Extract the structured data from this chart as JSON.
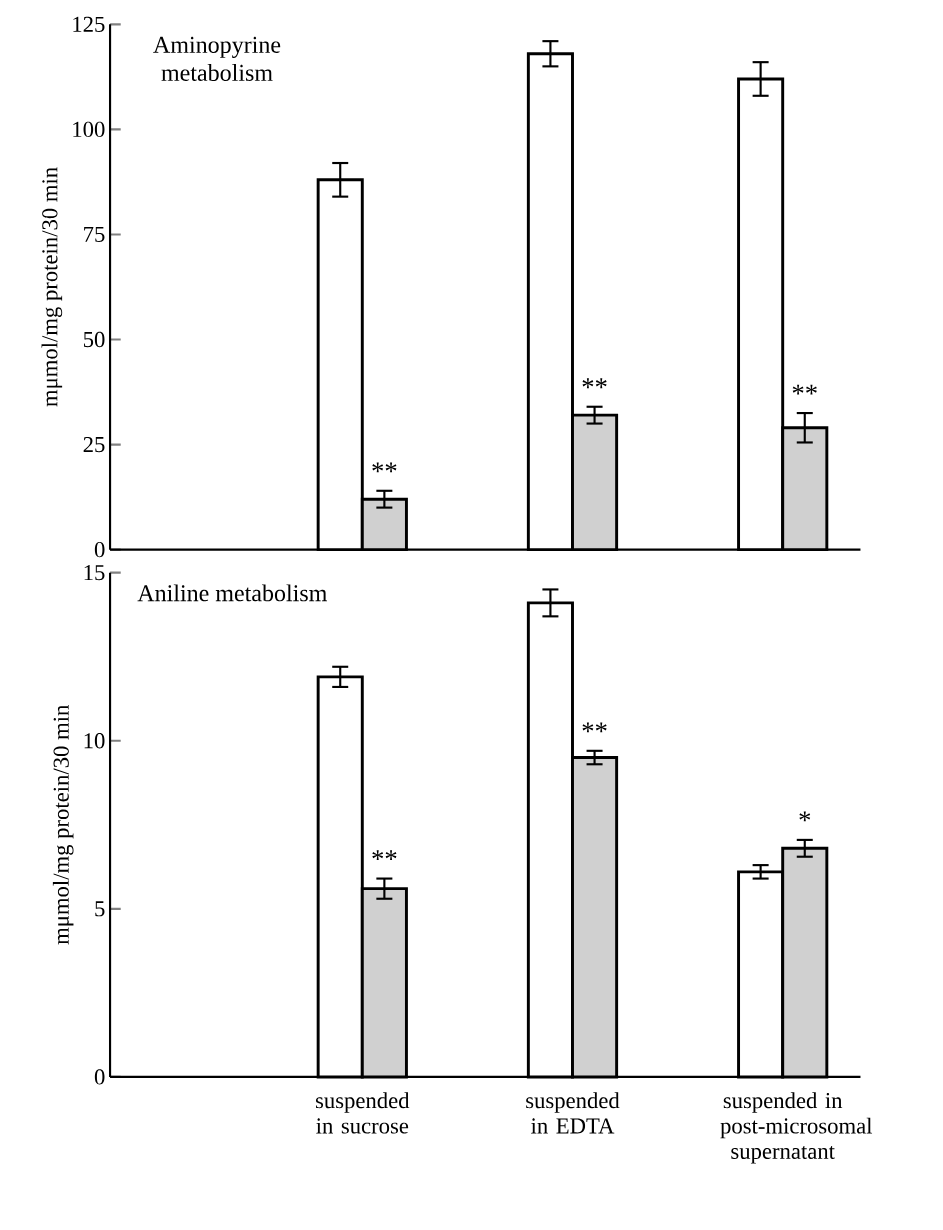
{
  "chart_data": [
    {
      "type": "bar",
      "title": "Aminopyrine metabolism",
      "ylabel": "mμmol/mg protein/30 min",
      "categories": [
        "suspended in sucrose",
        "suspended in EDTA",
        "suspended in post-microsomal supernatant"
      ],
      "series": [
        {
          "color": "#ffffff",
          "values": [
            88,
            118,
            112
          ],
          "errors": [
            4,
            3,
            4
          ]
        },
        {
          "color": "#d0d0d0",
          "values": [
            12,
            32,
            29
          ],
          "errors": [
            2,
            2,
            3.5
          ]
        }
      ],
      "ylim": [
        0,
        125
      ],
      "yticks": [
        0,
        25,
        50,
        75,
        100,
        125
      ],
      "tick_labels": "y",
      "annotations": [
        {
          "text": "**",
          "x": "suspended in sucrose",
          "y": 12
        },
        {
          "text": "**",
          "x": "suspended in EDTA",
          "y": 32
        },
        {
          "text": "**",
          "x": "suspended in post-microsomal supernatant",
          "y": 29
        }
      ]
    },
    {
      "type": "bar",
      "title": "Aniline metabolism",
      "ylabel": "mμmol/mg protein/30 min",
      "categories": [
        "suspended in sucrose",
        "suspended in EDTA",
        "suspended in post-microsomal supernatant"
      ],
      "series": [
        {
          "color": "#ffffff",
          "values": [
            11.9,
            14.1,
            6.1
          ],
          "errors": [
            0.3,
            0.4,
            0.2
          ]
        },
        {
          "color": "#d0d0d0",
          "values": [
            5.6,
            9.5,
            6.8
          ],
          "errors": [
            0.3,
            0.2,
            0.25
          ]
        }
      ],
      "ylim": [
        0,
        15
      ],
      "yticks": [
        0,
        5,
        10,
        15
      ],
      "annotations": [
        {
          "text": "**",
          "x": "suspended in sucrose",
          "y": 5.6
        },
        {
          "text": "**",
          "x": "suspended in EDTA",
          "y": 9.5
        },
        {
          "text": "*",
          "x": "suspended in post-microsomal supernatant",
          "y": 6.8
        }
      ]
    }
  ]
}
